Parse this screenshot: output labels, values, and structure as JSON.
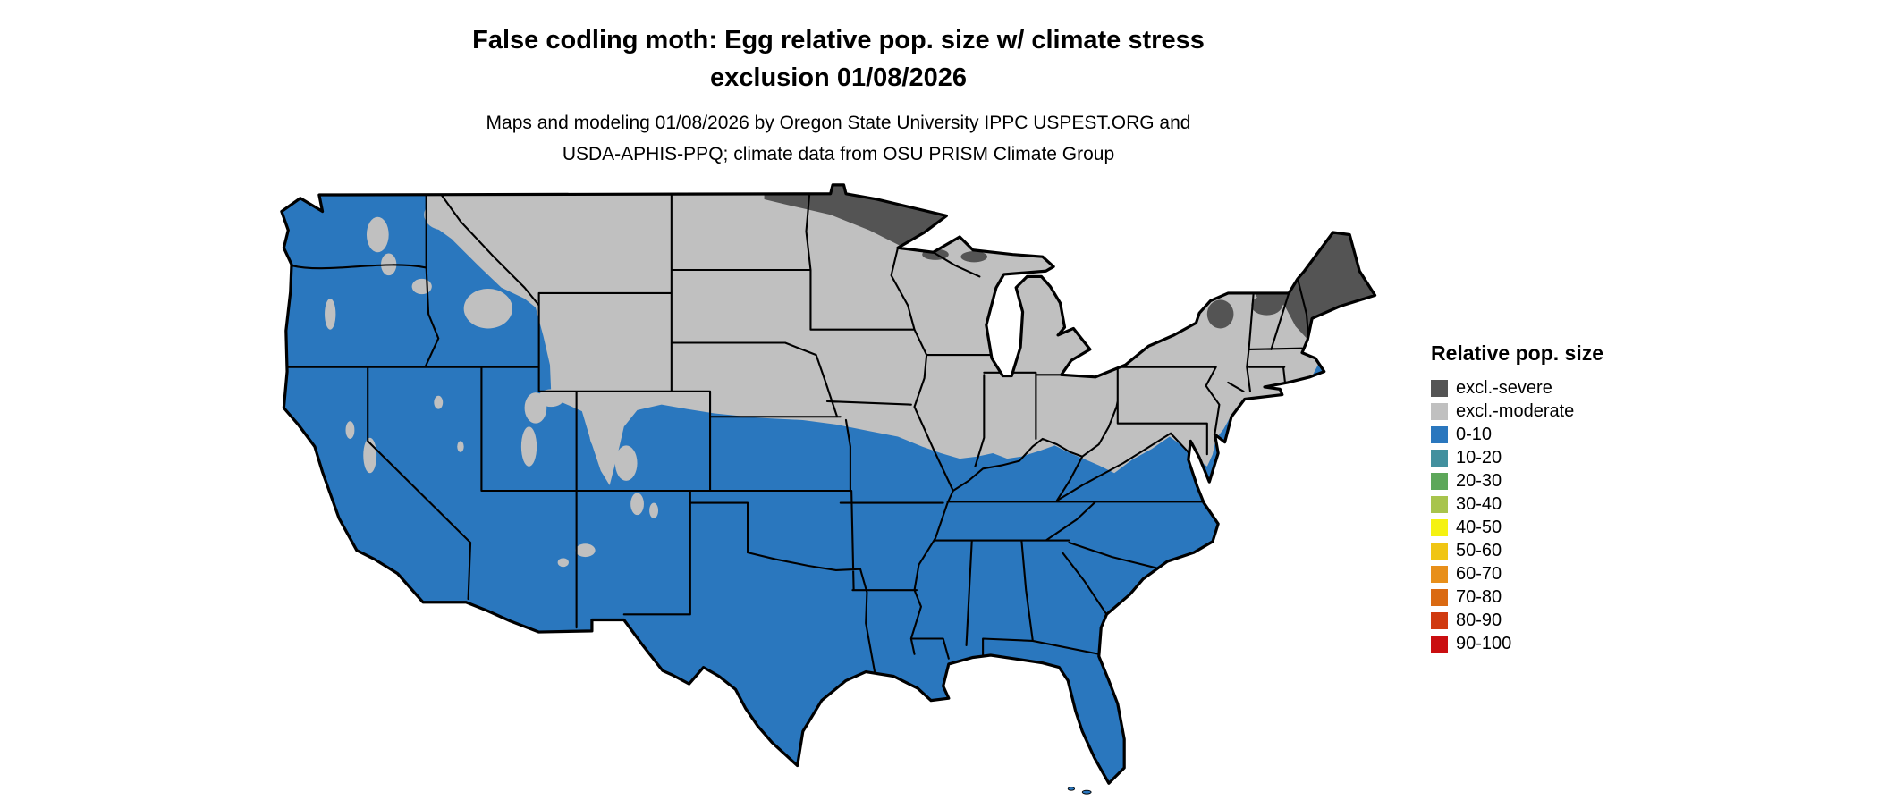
{
  "page": {
    "background": "#ffffff"
  },
  "title": {
    "line1": "False codling moth: Egg relative pop. size w/ climate stress",
    "line2": "exclusion 01/08/2026"
  },
  "subtitle": {
    "line1": "Maps and modeling 01/08/2026 by Oregon State University IPPC USPEST.ORG and",
    "line2": "USDA-APHIS-PPQ; climate data from OSU PRISM Climate Group"
  },
  "legend": {
    "title": "Relative pop. size",
    "items": [
      {
        "label": "excl.-severe",
        "color": "#545454"
      },
      {
        "label": "excl.-moderate",
        "color": "#c0c0c0"
      },
      {
        "label": "0-10",
        "color": "#2a77be"
      },
      {
        "label": "10-20",
        "color": "#42909e"
      },
      {
        "label": "20-30",
        "color": "#5da75a"
      },
      {
        "label": "30-40",
        "color": "#a8c44d"
      },
      {
        "label": "40-50",
        "color": "#f5f211"
      },
      {
        "label": "50-60",
        "color": "#f0c513"
      },
      {
        "label": "60-70",
        "color": "#e88f1a"
      },
      {
        "label": "70-80",
        "color": "#da6a12"
      },
      {
        "label": "80-90",
        "color": "#d03a10"
      },
      {
        "label": "90-100",
        "color": "#ca0e10"
      }
    ]
  },
  "map": {
    "colors": {
      "excl_severe": "#545454",
      "excl_moderate": "#c0c0c0",
      "value_0_10": "#2a77be",
      "state_border": "#000000",
      "water": "#ffffff"
    }
  },
  "chart_data": {
    "type": "choropleth-map",
    "title": "False codling moth: Egg relative pop. size w/ climate stress exclusion 01/08/2026",
    "legend_title": "Relative pop. size",
    "categories": [
      "excl.-severe",
      "excl.-moderate",
      "0-10",
      "10-20",
      "20-30",
      "30-40",
      "40-50",
      "50-60",
      "60-70",
      "70-80",
      "80-90",
      "90-100"
    ],
    "visible_categories_on_map": [
      "excl.-severe",
      "excl.-moderate",
      "0-10"
    ]
  }
}
